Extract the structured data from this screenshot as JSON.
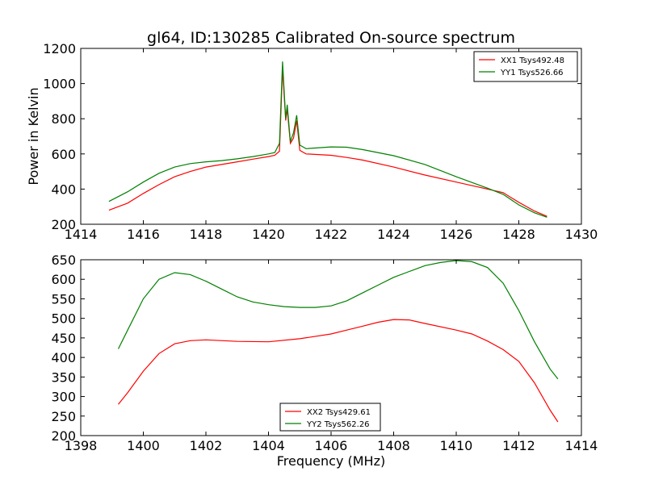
{
  "chart_data": [
    {
      "type": "line",
      "title": "gl64, ID:130285 Calibrated On-source spectrum",
      "ylabel": "Power in Kelvin",
      "xlabel": "",
      "xlim": [
        1414,
        1430
      ],
      "ylim": [
        200,
        1200
      ],
      "xticks": [
        "1414",
        "1416",
        "1418",
        "1420",
        "1422",
        "1424",
        "1426",
        "1428",
        "1430"
      ],
      "yticks": [
        "200",
        "400",
        "600",
        "800",
        "1000",
        "1200"
      ],
      "legend_position": "top-right",
      "series": [
        {
          "name": "XX1 Tsys492.48",
          "color": "#ff0000",
          "points": [
            [
              1414.9,
              280
            ],
            [
              1415.5,
              320
            ],
            [
              1416,
              375
            ],
            [
              1416.5,
              425
            ],
            [
              1417,
              470
            ],
            [
              1417.5,
              500
            ],
            [
              1418,
              525
            ],
            [
              1418.5,
              540
            ],
            [
              1419,
              555
            ],
            [
              1419.5,
              570
            ],
            [
              1420,
              585
            ],
            [
              1420.2,
              592
            ],
            [
              1420.35,
              615
            ],
            [
              1420.45,
              1085
            ],
            [
              1420.55,
              790
            ],
            [
              1420.6,
              855
            ],
            [
              1420.7,
              660
            ],
            [
              1420.8,
              690
            ],
            [
              1420.9,
              790
            ],
            [
              1421.0,
              620
            ],
            [
              1421.2,
              600
            ],
            [
              1422,
              592
            ],
            [
              1422.5,
              580
            ],
            [
              1423,
              565
            ],
            [
              1424,
              525
            ],
            [
              1425,
              480
            ],
            [
              1426,
              440
            ],
            [
              1427,
              400
            ],
            [
              1427.5,
              380
            ],
            [
              1428,
              325
            ],
            [
              1428.5,
              275
            ],
            [
              1428.9,
              245
            ]
          ]
        },
        {
          "name": "YY1 Tsys526.66",
          "color": "#008000",
          "points": [
            [
              1414.9,
              330
            ],
            [
              1415.5,
              385
            ],
            [
              1416,
              440
            ],
            [
              1416.5,
              490
            ],
            [
              1417,
              525
            ],
            [
              1417.5,
              545
            ],
            [
              1418,
              555
            ],
            [
              1418.5,
              562
            ],
            [
              1419,
              572
            ],
            [
              1419.5,
              585
            ],
            [
              1420,
              600
            ],
            [
              1420.2,
              608
            ],
            [
              1420.35,
              660
            ],
            [
              1420.45,
              1125
            ],
            [
              1420.55,
              800
            ],
            [
              1420.6,
              880
            ],
            [
              1420.7,
              670
            ],
            [
              1420.8,
              720
            ],
            [
              1420.9,
              820
            ],
            [
              1421.0,
              650
            ],
            [
              1421.2,
              630
            ],
            [
              1422,
              640
            ],
            [
              1422.5,
              638
            ],
            [
              1423,
              625
            ],
            [
              1424,
              590
            ],
            [
              1425,
              540
            ],
            [
              1426,
              470
            ],
            [
              1427,
              405
            ],
            [
              1427.5,
              370
            ],
            [
              1428,
              310
            ],
            [
              1428.5,
              265
            ],
            [
              1428.9,
              240
            ]
          ]
        }
      ]
    },
    {
      "type": "line",
      "title": "",
      "ylabel": "",
      "xlabel": "Frequency (MHz)",
      "xlim": [
        1398,
        1414
      ],
      "ylim": [
        200,
        650
      ],
      "xticks": [
        "1398",
        "1400",
        "1402",
        "1404",
        "1406",
        "1408",
        "1410",
        "1412",
        "1414"
      ],
      "yticks": [
        "200",
        "250",
        "300",
        "350",
        "400",
        "450",
        "500",
        "550",
        "600",
        "650"
      ],
      "legend_position": "bottom-center",
      "series": [
        {
          "name": "XX2 Tsys429.61",
          "color": "#ff0000",
          "points": [
            [
              1399.2,
              280
            ],
            [
              1399.5,
              310
            ],
            [
              1400,
              365
            ],
            [
              1400.5,
              410
            ],
            [
              1401,
              435
            ],
            [
              1401.5,
              443
            ],
            [
              1402,
              445
            ],
            [
              1403,
              441
            ],
            [
              1404,
              440
            ],
            [
              1405,
              448
            ],
            [
              1406,
              460
            ],
            [
              1406.5,
              470
            ],
            [
              1407,
              480
            ],
            [
              1407.5,
              490
            ],
            [
              1408,
              497
            ],
            [
              1408.5,
              496
            ],
            [
              1409,
              487
            ],
            [
              1410,
              470
            ],
            [
              1410.5,
              460
            ],
            [
              1411,
              442
            ],
            [
              1411.5,
              420
            ],
            [
              1412,
              390
            ],
            [
              1412.5,
              335
            ],
            [
              1413,
              265
            ],
            [
              1413.25,
              235
            ]
          ]
        },
        {
          "name": "YY2 Tsys562.26",
          "color": "#008000",
          "points": [
            [
              1399.2,
              422
            ],
            [
              1399.5,
              470
            ],
            [
              1400,
              550
            ],
            [
              1400.5,
              600
            ],
            [
              1401,
              617
            ],
            [
              1401.5,
              612
            ],
            [
              1402,
              595
            ],
            [
              1402.5,
              575
            ],
            [
              1403,
              555
            ],
            [
              1403.5,
              542
            ],
            [
              1404,
              535
            ],
            [
              1404.5,
              530
            ],
            [
              1405,
              528
            ],
            [
              1405.5,
              528
            ],
            [
              1406,
              532
            ],
            [
              1406.5,
              545
            ],
            [
              1407,
              565
            ],
            [
              1407.5,
              585
            ],
            [
              1408,
              605
            ],
            [
              1408.5,
              620
            ],
            [
              1409,
              635
            ],
            [
              1409.5,
              643
            ],
            [
              1410,
              648
            ],
            [
              1410.5,
              645
            ],
            [
              1411,
              630
            ],
            [
              1411.5,
              590
            ],
            [
              1412,
              520
            ],
            [
              1412.5,
              440
            ],
            [
              1413,
              370
            ],
            [
              1413.25,
              345
            ]
          ]
        }
      ]
    }
  ]
}
